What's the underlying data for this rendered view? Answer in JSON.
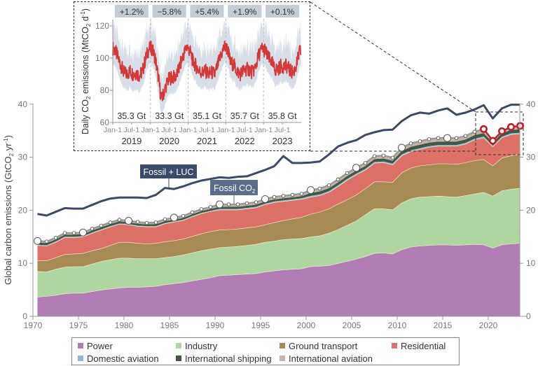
{
  "chart_data": [
    {
      "type": "area",
      "stacked": true,
      "title": "",
      "xlabel": "",
      "ylabel": "Global carbon emissions (GtCO2 yr-1)",
      "ylabel_parts": {
        "main": "Global carbon emissions (GtCO",
        "sub": "2",
        "after": " yr",
        "sup": "-1",
        "close": ")"
      },
      "xlim": [
        1970,
        2024
      ],
      "ylim": [
        0,
        40
      ],
      "xticks": [
        1970,
        1975,
        1980,
        1985,
        1990,
        1995,
        2000,
        2005,
        2010,
        2015,
        2020
      ],
      "yticks": [
        0,
        10,
        20,
        30,
        40
      ],
      "grid": false,
      "legend_position": "bottom",
      "x": [
        1970,
        1971,
        1972,
        1973,
        1974,
        1975,
        1976,
        1977,
        1978,
        1979,
        1980,
        1981,
        1982,
        1983,
        1984,
        1985,
        1986,
        1987,
        1988,
        1989,
        1990,
        1991,
        1992,
        1993,
        1994,
        1995,
        1996,
        1997,
        1998,
        1999,
        2000,
        2001,
        2002,
        2003,
        2004,
        2005,
        2006,
        2007,
        2008,
        2009,
        2010,
        2011,
        2012,
        2013,
        2014,
        2015,
        2016,
        2017,
        2018,
        2019,
        2020,
        2021,
        2022,
        2023
      ],
      "series": [
        {
          "name": "Power",
          "color": "#b27db5",
          "values": [
            3.7,
            3.8,
            4.0,
            4.3,
            4.4,
            4.4,
            4.7,
            5.0,
            5.2,
            5.4,
            5.5,
            5.5,
            5.6,
            5.7,
            6.0,
            6.2,
            6.4,
            6.7,
            7.0,
            7.3,
            7.7,
            7.8,
            7.9,
            8.0,
            8.1,
            8.4,
            8.6,
            8.8,
            8.9,
            9.0,
            9.4,
            9.5,
            9.6,
            10.0,
            10.4,
            10.8,
            11.3,
            11.9,
            12.0,
            11.8,
            12.6,
            13.1,
            13.3,
            13.4,
            13.5,
            13.5,
            13.4,
            13.5,
            13.6,
            13.5,
            12.9,
            13.5,
            13.7,
            13.8
          ]
        },
        {
          "name": "Industry",
          "color": "#afd5a0",
          "values": [
            4.8,
            4.6,
            4.9,
            5.0,
            5.0,
            5.0,
            5.2,
            5.4,
            5.5,
            5.6,
            5.5,
            5.4,
            5.3,
            5.2,
            5.1,
            5.1,
            5.2,
            5.3,
            5.4,
            5.4,
            5.3,
            5.3,
            5.3,
            5.4,
            5.5,
            5.6,
            5.6,
            5.7,
            5.7,
            5.7,
            5.6,
            5.7,
            6.1,
            6.4,
            6.8,
            7.2,
            7.9,
            8.4,
            8.3,
            8.3,
            8.8,
            9.1,
            9.2,
            9.2,
            9.2,
            9.1,
            9.1,
            9.3,
            9.5,
            9.9,
            9.8,
            10.2,
            10.3,
            10.4
          ]
        },
        {
          "name": "Ground transport",
          "color": "#a88a55",
          "values": [
            2.0,
            2.1,
            2.2,
            2.4,
            2.4,
            2.5,
            2.5,
            2.4,
            2.7,
            3.0,
            3.0,
            2.9,
            2.8,
            2.9,
            3.0,
            3.0,
            3.0,
            3.1,
            3.2,
            3.3,
            3.3,
            3.3,
            3.3,
            3.3,
            3.3,
            3.3,
            3.5,
            3.6,
            3.8,
            4.0,
            4.3,
            4.5,
            4.6,
            4.8,
            4.8,
            4.9,
            4.9,
            5.1,
            5.1,
            5.2,
            5.7,
            5.8,
            5.9,
            6.0,
            6.1,
            6.2,
            6.2,
            6.2,
            6.3,
            6.2,
            5.7,
            6.2,
            6.3,
            6.4
          ]
        },
        {
          "name": "Residential",
          "color": "#dd7168",
          "values": [
            2.9,
            2.8,
            2.9,
            3.2,
            3.1,
            3.1,
            3.3,
            3.5,
            3.5,
            3.4,
            3.3,
            3.2,
            3.2,
            3.1,
            3.4,
            3.5,
            3.5,
            3.7,
            3.8,
            3.8,
            3.8,
            3.7,
            3.6,
            3.6,
            3.6,
            3.8,
            3.8,
            3.6,
            3.5,
            3.4,
            3.2,
            3.1,
            3.1,
            3.3,
            3.7,
            3.8,
            3.5,
            3.5,
            3.6,
            3.3,
            3.2,
            3.1,
            3.1,
            3.3,
            3.3,
            3.3,
            3.4,
            3.5,
            3.9,
            4.1,
            3.6,
            3.8,
            4.0,
            3.8
          ]
        },
        {
          "name": "Domestic aviation",
          "color": "#8fb8d8",
          "values": [
            0.1,
            0.1,
            0.1,
            0.1,
            0.1,
            0.1,
            0.1,
            0.1,
            0.1,
            0.1,
            0.1,
            0.1,
            0.1,
            0.1,
            0.1,
            0.1,
            0.1,
            0.1,
            0.1,
            0.1,
            0.15,
            0.15,
            0.15,
            0.15,
            0.15,
            0.15,
            0.15,
            0.15,
            0.15,
            0.15,
            0.2,
            0.2,
            0.2,
            0.2,
            0.2,
            0.2,
            0.2,
            0.2,
            0.2,
            0.2,
            0.2,
            0.2,
            0.2,
            0.2,
            0.2,
            0.2,
            0.2,
            0.2,
            0.2,
            0.2,
            0.15,
            0.18,
            0.2,
            0.22
          ]
        },
        {
          "name": "International shipping",
          "color": "#3e5a45",
          "values": [
            0.4,
            0.4,
            0.4,
            0.4,
            0.4,
            0.4,
            0.4,
            0.4,
            0.4,
            0.4,
            0.35,
            0.35,
            0.35,
            0.35,
            0.35,
            0.35,
            0.35,
            0.35,
            0.35,
            0.35,
            0.4,
            0.4,
            0.4,
            0.4,
            0.4,
            0.4,
            0.4,
            0.4,
            0.4,
            0.4,
            0.55,
            0.55,
            0.55,
            0.55,
            0.55,
            0.55,
            0.55,
            0.55,
            0.55,
            0.55,
            0.65,
            0.65,
            0.65,
            0.65,
            0.65,
            0.65,
            0.65,
            0.65,
            0.65,
            0.65,
            0.6,
            0.63,
            0.65,
            0.65
          ]
        },
        {
          "name": "International aviation",
          "color": "#c9b3a6",
          "values": [
            0.2,
            0.2,
            0.2,
            0.2,
            0.2,
            0.2,
            0.2,
            0.2,
            0.2,
            0.2,
            0.2,
            0.2,
            0.2,
            0.2,
            0.2,
            0.2,
            0.2,
            0.2,
            0.2,
            0.2,
            0.3,
            0.3,
            0.3,
            0.3,
            0.3,
            0.3,
            0.3,
            0.3,
            0.3,
            0.3,
            0.4,
            0.4,
            0.4,
            0.4,
            0.4,
            0.4,
            0.4,
            0.4,
            0.4,
            0.4,
            0.5,
            0.5,
            0.5,
            0.5,
            0.5,
            0.5,
            0.5,
            0.5,
            0.5,
            0.6,
            0.25,
            0.3,
            0.45,
            0.55
          ]
        }
      ],
      "lines": [
        {
          "name": "Fossil + LUC",
          "color": "#3b4a69",
          "values": [
            19.3,
            19.0,
            19.7,
            20.4,
            20.3,
            20.3,
            21.0,
            21.7,
            22.2,
            22.4,
            22.4,
            22.4,
            22.3,
            22.9,
            24.2,
            24.0,
            24.5,
            25.1,
            25.6,
            25.9,
            26.2,
            26.1,
            26.3,
            26.4,
            27.0,
            27.6,
            28.3,
            30.2,
            28.9,
            28.9,
            29.0,
            29.2,
            30.5,
            32.0,
            32.7,
            33.2,
            34.2,
            34.7,
            35.1,
            35.2,
            36.8,
            37.9,
            38.4,
            38.2,
            38.8,
            39.2,
            38.0,
            38.4,
            39.0,
            39.8,
            37.3,
            39.2,
            39.9,
            39.9
          ]
        },
        {
          "name": "Fossil CO2",
          "label_main": "Fossil CO",
          "label_sub": "2",
          "color": "#9a9a9a",
          "highlight_color": "#c0202a",
          "highlight_from": 2019,
          "values": [
            14.2,
            14.1,
            14.8,
            15.7,
            15.7,
            15.8,
            16.5,
            17.1,
            17.7,
            18.2,
            18.0,
            17.8,
            17.6,
            17.7,
            18.3,
            18.6,
            18.9,
            19.6,
            20.2,
            20.6,
            21.1,
            21.1,
            21.1,
            21.3,
            21.5,
            22.1,
            22.5,
            22.7,
            22.9,
            23.1,
            23.8,
            24.1,
            24.7,
            25.8,
            27.0,
            28.0,
            28.9,
            30.2,
            30.3,
            29.9,
            31.8,
            32.6,
            33.0,
            33.4,
            33.6,
            33.6,
            33.6,
            34.0,
            34.8,
            35.3,
            33.1,
            34.9,
            35.7,
            35.9
          ]
        }
      ],
      "annotations": [
        {
          "text": "Fossil + LUC",
          "target": "Fossil + LUC"
        },
        {
          "text": "Fossil CO2",
          "target": "Fossil CO2"
        }
      ]
    },
    {
      "type": "line",
      "title": "",
      "inset": true,
      "ylabel": "Daily CO2 emissions (MtCO2 d-1)",
      "ylabel_parts": {
        "a": "Daily CO",
        "b": "2",
        "c": " emissions (MtCO",
        "d": "2",
        "e": " d",
        "f": "-1",
        "g": ")"
      },
      "ylim": [
        60,
        130
      ],
      "yticks": [
        60,
        80,
        100,
        120
      ],
      "xtick_labels": [
        "Jan-1",
        "Jul-1",
        "Jan-1",
        "Jul-1",
        "Jan-1",
        "Jul-1",
        "Jan-1",
        "Jul-1",
        "Jan-1",
        "Jul-1"
      ],
      "years": [
        "2019",
        "2020",
        "2021",
        "2022",
        "2023"
      ],
      "growth_labels": [
        "+1.2%",
        "−5.8%",
        "+5.4%",
        "+1.9%",
        "+0.1%"
      ],
      "annual_totals": [
        "35.3 Gt",
        "33.3 Gt",
        "35.1 Gt",
        "35.7 Gt",
        "35.8 Gt"
      ],
      "line_color": "#d23a3a",
      "band_color": "#c9d3df",
      "monthly_values": [
        [
          106,
          101,
          96,
          91,
          90,
          92,
          90,
          91,
          89,
          92,
          100,
          106
        ],
        [
          106,
          100,
          88,
          74,
          80,
          86,
          88,
          88,
          90,
          96,
          102,
          107
        ],
        [
          105,
          98,
          95,
          92,
          91,
          92,
          90,
          91,
          90,
          96,
          102,
          107
        ],
        [
          106,
          97,
          96,
          92,
          90,
          92,
          93,
          93,
          91,
          95,
          102,
          106
        ],
        [
          105,
          100,
          98,
          93,
          93,
          95,
          95,
          95,
          92,
          91,
          96,
          104
        ]
      ]
    }
  ],
  "legend": [
    {
      "label": "Power",
      "color": "#b27db5"
    },
    {
      "label": "Industry",
      "color": "#afd5a0"
    },
    {
      "label": "Ground transport",
      "color": "#a88a55"
    },
    {
      "label": "Residential",
      "color": "#dd7168"
    },
    {
      "label": "Domestic aviation",
      "color": "#8fb8d8"
    },
    {
      "label": "International shipping",
      "color": "#3e5a45"
    },
    {
      "label": "International aviation",
      "color": "#c9b3a6"
    }
  ]
}
